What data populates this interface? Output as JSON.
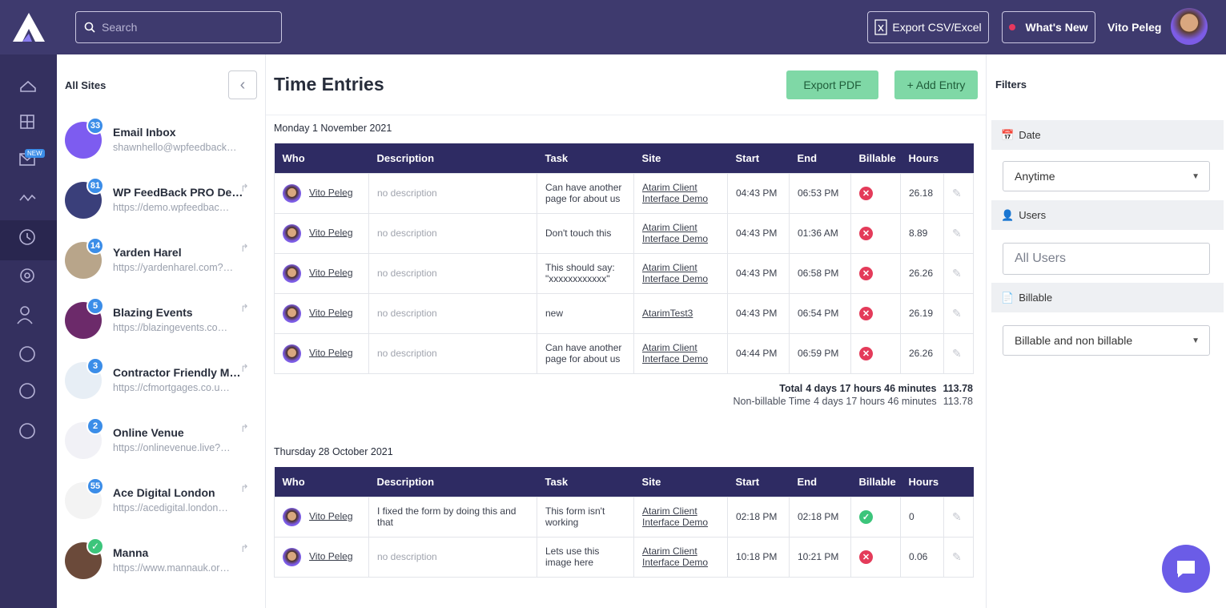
{
  "header": {
    "search_placeholder": "Search",
    "export_csv": "Export CSV/Excel",
    "whats_new": "What's New",
    "user_name": "Vito Peleg"
  },
  "nav": {
    "new_badge": "NEW"
  },
  "sites": {
    "title": "All Sites",
    "items": [
      {
        "name": "Email Inbox",
        "url": "shawnhello@wpfeedback…",
        "count": "33"
      },
      {
        "name": "WP FeedBack PRO De…",
        "url": "https://demo.wpfeedbac…",
        "count": "81"
      },
      {
        "name": "Yarden Harel",
        "url": "https://yardenharel.com?…",
        "count": "14"
      },
      {
        "name": "Blazing Events",
        "url": "https://blazingevents.co…",
        "count": "5"
      },
      {
        "name": "Contractor Friendly M…",
        "url": "https://cfmortgages.co.u…",
        "count": "3"
      },
      {
        "name": "Online Venue",
        "url": "https://onlinevenue.live?…",
        "count": "2"
      },
      {
        "name": "Ace Digital London",
        "url": "https://acedigital.london…",
        "count": "55"
      },
      {
        "name": "Manna",
        "url": "https://www.mannauk.or…",
        "verified": true
      }
    ]
  },
  "main": {
    "title": "Time Entries",
    "export_pdf": "Export PDF",
    "add_entry": "+ Add Entry",
    "columns": [
      "Who",
      "Description",
      "Task",
      "Site",
      "Start",
      "End",
      "Billable",
      "Hours"
    ],
    "groups": [
      {
        "date": "Monday 1 November 2021",
        "rows": [
          {
            "who": "Vito Peleg",
            "description": "no description",
            "task": "Can have another page for about us",
            "site": "Atarim Client Interface Demo",
            "start": "04:43 PM",
            "end": "06:53 PM",
            "billable": false,
            "hours": "26.18"
          },
          {
            "who": "Vito Peleg",
            "description": "no description",
            "task": "Don't touch this",
            "site": "Atarim Client Interface Demo",
            "start": "04:43 PM",
            "end": "01:36 AM",
            "billable": false,
            "hours": "8.89"
          },
          {
            "who": "Vito Peleg",
            "description": "no description",
            "task": "This should say: \"xxxxxxxxxxxx\"",
            "site": "Atarim Client Interface Demo",
            "start": "04:43 PM",
            "end": "06:58 PM",
            "billable": false,
            "hours": "26.26"
          },
          {
            "who": "Vito Peleg",
            "description": "no description",
            "task": "new",
            "site": "AtarimTest3",
            "start": "04:43 PM",
            "end": "06:54 PM",
            "billable": false,
            "hours": "26.19"
          },
          {
            "who": "Vito Peleg",
            "description": "no description",
            "task": "Can have another page for about us",
            "site": "Atarim Client Interface Demo",
            "start": "04:44 PM",
            "end": "06:59 PM",
            "billable": false,
            "hours": "26.26"
          }
        ],
        "totals": [
          {
            "label": "Total",
            "time": "4 days 17 hours 46 minutes",
            "hours": "113.78"
          },
          {
            "label": "Non-billable Time",
            "time": "4 days 17 hours 46 minutes",
            "hours": "113.78"
          }
        ]
      },
      {
        "date": "Thursday 28 October 2021",
        "rows": [
          {
            "who": "Vito Peleg",
            "description": "I fixed the form by doing this and that",
            "task": "This form isn't working",
            "site": "Atarim Client Interface Demo",
            "start": "02:18 PM",
            "end": "02:18 PM",
            "billable": true,
            "hours": "0"
          },
          {
            "who": "Vito Peleg",
            "description": "no description",
            "task": "Lets use this image here",
            "site": "Atarim Client Interface Demo",
            "start": "10:18 PM",
            "end": "10:21 PM",
            "billable": false,
            "hours": "0.06"
          }
        ]
      }
    ]
  },
  "filters": {
    "title": "Filters",
    "date_label": "Date",
    "date_value": "Anytime",
    "users_label": "Users",
    "users_placeholder": "All Users",
    "billable_label": "Billable",
    "billable_value": "Billable and non billable"
  }
}
